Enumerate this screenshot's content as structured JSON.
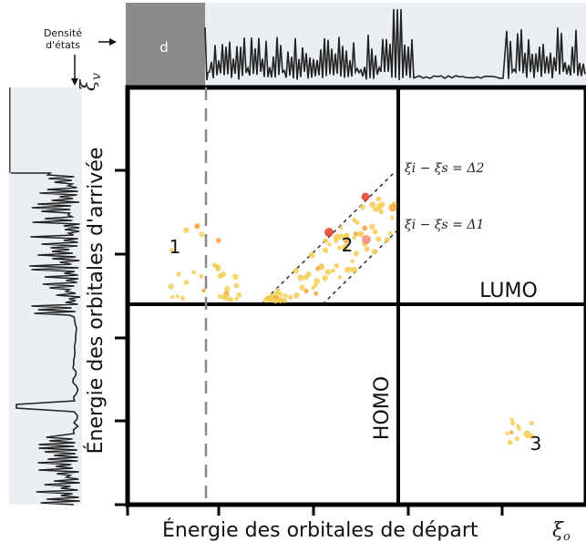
{
  "labels": {
    "d": "d",
    "dos_line1": "Densité",
    "dos_line2": "d'états",
    "y_axis": "Énergie des orbitales d'arrivée",
    "y_symbol": "ξ",
    "y_sub": "v",
    "x_axis": "Énergie des orbitales de départ",
    "x_symbol": "ξ",
    "x_sub": "o",
    "lumo": "LUMO",
    "homo": "HOMO",
    "eq2": "ξi − ξs = Δ2",
    "eq1": "ξi − ξs = Δ1",
    "region1": "1",
    "region2": "2",
    "region3": "3"
  },
  "colors": {
    "point_light": "#f3cf5a",
    "point_mid": "#f0a640",
    "point_dark": "#e03b2c",
    "panel_gray": "#8a8a8a",
    "dos_fill": "#e8eef2"
  },
  "chart_data": {
    "type": "scatter",
    "clusters": [
      {
        "label": "1",
        "points": 30
      },
      {
        "label": "2",
        "points": 90
      },
      {
        "label": "3",
        "points": 14
      }
    ]
  }
}
